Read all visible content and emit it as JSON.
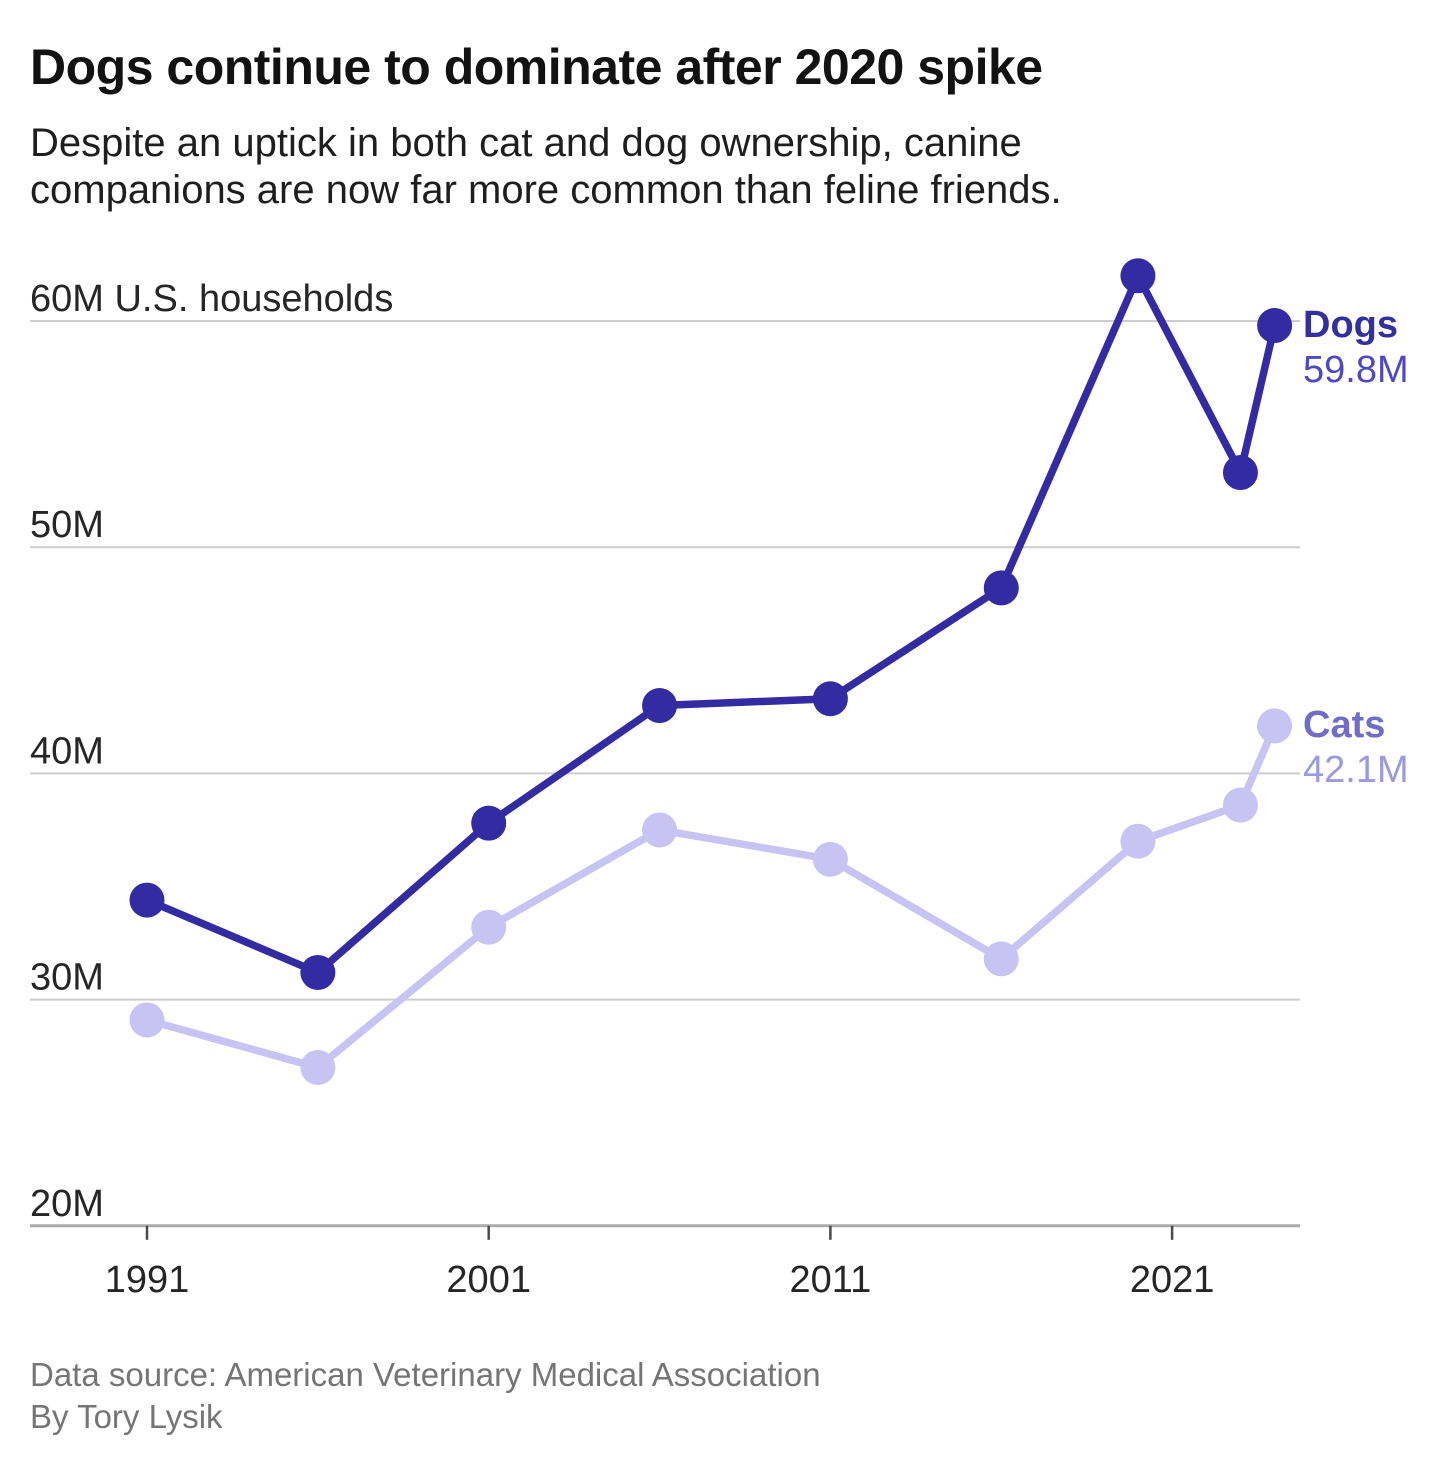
{
  "header": {
    "title": "Dogs continue to dominate after 2020 spike",
    "subtitle_lines": [
      "Despite an uptick in both cat and dog ownership, canine",
      "companions are now far more common than feline friends."
    ]
  },
  "footer": {
    "source": "Data source: American Veterinary Medical Association",
    "byline": "By Tory Lysik"
  },
  "colors": {
    "dogs_line": "#322BA1",
    "dogs_name_text": "#32309F",
    "dogs_value_text": "#4E48C4",
    "cats_line": "#C7C4F3",
    "cats_name_text": "#6E6DC8",
    "cats_value_text": "#9B99DF",
    "grid_line": "#CDCDCD",
    "axis_line": "#ABABAB",
    "tick_mark": "#4A4A4A",
    "axis_text": "#262626",
    "background": "#FFFFFF"
  },
  "chart_data": {
    "type": "line",
    "unit": "millions of U.S. households",
    "x": [
      1991,
      1996,
      2001,
      2006,
      2011,
      2016,
      2020,
      2023,
      2024
    ],
    "series": [
      {
        "name": "Dogs",
        "values": [
          34.4,
          31.2,
          37.8,
          43.0,
          43.3,
          48.2,
          62.0,
          53.3,
          59.8
        ],
        "end_value_label": "59.8M",
        "color": "#322BA1",
        "name_color": "#32309F",
        "value_color": "#4E48C4"
      },
      {
        "name": "Cats",
        "values": [
          29.1,
          27.0,
          33.2,
          37.5,
          36.2,
          31.8,
          37.0,
          38.6,
          42.1
        ],
        "end_value_label": "42.1M",
        "color": "#C7C4F3",
        "name_color": "#6E6DC8",
        "value_color": "#9B99DF"
      }
    ],
    "yticks": [
      {
        "value": 60,
        "label": "60M U.S. households"
      },
      {
        "value": 50,
        "label": "50M"
      },
      {
        "value": 40,
        "label": "40M"
      },
      {
        "value": 30,
        "label": "30M"
      },
      {
        "value": 20,
        "label": "20M"
      }
    ],
    "xticks": [
      {
        "value": 1991,
        "label": "1991"
      },
      {
        "value": 2001,
        "label": "2001"
      },
      {
        "value": 2011,
        "label": "2011"
      },
      {
        "value": 2021,
        "label": "2021"
      }
    ],
    "ylim": [
      20,
      63.6
    ],
    "grid": true,
    "legend_position": "line-end-labels-right"
  }
}
